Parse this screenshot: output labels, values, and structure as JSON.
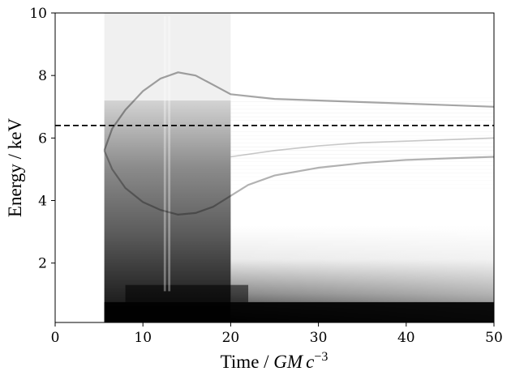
{
  "chart_data": {
    "type": "heatmap",
    "colormap": "greys (white = 0, black = high)",
    "xlabel": {
      "prefix": "Time / ",
      "math": "GM",
      "c": "c",
      "exp": "−3"
    },
    "ylabel": "Energy / keV",
    "xlim": [
      0,
      50
    ],
    "ylim": [
      0.1,
      10
    ],
    "xticks": [
      0,
      10,
      20,
      30,
      40,
      50
    ],
    "yticks": [
      2,
      4,
      6,
      8,
      10
    ],
    "grid": false,
    "reference_line": {
      "y": 6.4,
      "style": "dashed",
      "color": "#000000"
    },
    "signal_onset_time": 5.6,
    "bright_band_time_range": [
      5.6,
      20
    ],
    "vertical_light_stripes": [
      12.5,
      13.0
    ],
    "upper_branch": {
      "time": [
        5.6,
        6.5,
        8,
        10,
        12,
        14,
        16,
        18,
        20,
        25,
        30,
        35,
        40,
        45,
        50
      ],
      "energy": [
        5.6,
        6.3,
        6.9,
        7.5,
        7.9,
        8.1,
        8.0,
        7.7,
        7.4,
        7.25,
        7.2,
        7.15,
        7.1,
        7.05,
        7.0
      ]
    },
    "lower_branch": {
      "time": [
        5.6,
        6.5,
        8,
        10,
        12,
        14,
        16,
        18,
        20,
        22,
        25,
        30,
        35,
        40,
        45,
        50
      ],
      "energy": [
        5.6,
        5.0,
        4.4,
        3.95,
        3.7,
        3.55,
        3.6,
        3.8,
        4.15,
        4.5,
        4.8,
        5.05,
        5.2,
        5.3,
        5.35,
        5.4
      ]
    },
    "mid_branch": {
      "time": [
        20,
        25,
        30,
        35,
        40,
        45,
        50
      ],
      "energy": [
        5.4,
        5.6,
        5.75,
        5.85,
        5.9,
        5.95,
        6.0
      ]
    },
    "colors": {
      "ink": "#000000",
      "background": "#ffffff"
    }
  }
}
